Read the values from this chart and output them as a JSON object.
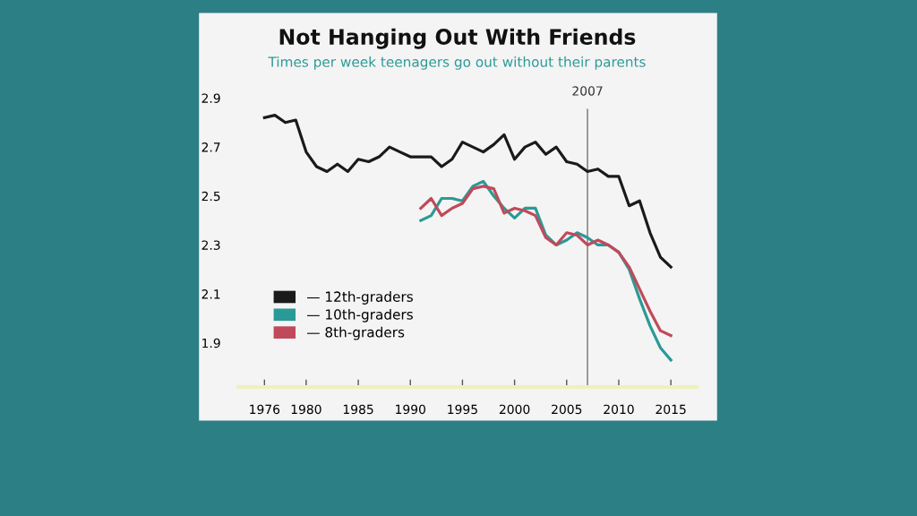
{
  "chart_data": {
    "type": "line",
    "title": "Not Hanging Out With Friends",
    "subtitle": "Times per week teenagers go out without their parents",
    "x": [
      1976,
      1977,
      1978,
      1979,
      1980,
      1981,
      1982,
      1983,
      1984,
      1985,
      1986,
      1987,
      1988,
      1989,
      1990,
      1991,
      1992,
      1993,
      1994,
      1995,
      1996,
      1997,
      1998,
      1999,
      2000,
      2001,
      2002,
      2003,
      2004,
      2005,
      2006,
      2007,
      2008,
      2009,
      2010,
      2011,
      2012,
      2013,
      2014,
      2015
    ],
    "series": [
      {
        "name": "— 12th-graders",
        "color": "#1a1a1a",
        "values": [
          2.82,
          2.83,
          2.8,
          2.81,
          2.68,
          2.62,
          2.6,
          2.63,
          2.6,
          2.65,
          2.64,
          2.66,
          2.7,
          2.68,
          2.66,
          2.66,
          2.66,
          2.62,
          2.65,
          2.72,
          2.7,
          2.68,
          2.71,
          2.75,
          2.65,
          2.7,
          2.72,
          2.67,
          2.7,
          2.64,
          2.63,
          2.6,
          2.61,
          2.58,
          2.58,
          2.46,
          2.48,
          2.35,
          2.25,
          2.21
        ]
      },
      {
        "name": "— 10th-graders",
        "color": "#2a9a96",
        "values": [
          null,
          null,
          null,
          null,
          null,
          null,
          null,
          null,
          null,
          null,
          null,
          null,
          null,
          null,
          null,
          2.4,
          2.42,
          2.49,
          2.49,
          2.48,
          2.54,
          2.56,
          2.5,
          2.45,
          2.41,
          2.45,
          2.45,
          2.34,
          2.3,
          2.32,
          2.35,
          2.33,
          2.3,
          2.3,
          2.27,
          2.2,
          2.08,
          1.97,
          1.88,
          1.83
        ]
      },
      {
        "name": "— 8th-graders",
        "color": "#c04a5a",
        "values": [
          null,
          null,
          null,
          null,
          null,
          null,
          null,
          null,
          null,
          null,
          null,
          null,
          null,
          null,
          null,
          2.45,
          2.49,
          2.42,
          2.45,
          2.47,
          2.53,
          2.54,
          2.53,
          2.43,
          2.45,
          2.44,
          2.42,
          2.33,
          2.3,
          2.35,
          2.34,
          2.3,
          2.32,
          2.3,
          2.27,
          2.21,
          2.12,
          2.03,
          1.95,
          1.93
        ]
      }
    ],
    "xlim": [
      1973.5,
      2017.5
    ],
    "xticks": [
      1976,
      1980,
      1985,
      1990,
      1995,
      2000,
      2005,
      2010,
      2015
    ],
    "ylim": [
      1.72,
      2.9
    ],
    "yticks": [
      1.9,
      2.1,
      2.3,
      2.5,
      2.7,
      2.9
    ],
    "ref_lines": [
      {
        "axis": "x",
        "value": 2007,
        "label": "2007",
        "color": "#888888",
        "line_style": "solid"
      }
    ],
    "grid": false,
    "legend": "bottom left",
    "marker": "none",
    "line_style": "solid"
  }
}
